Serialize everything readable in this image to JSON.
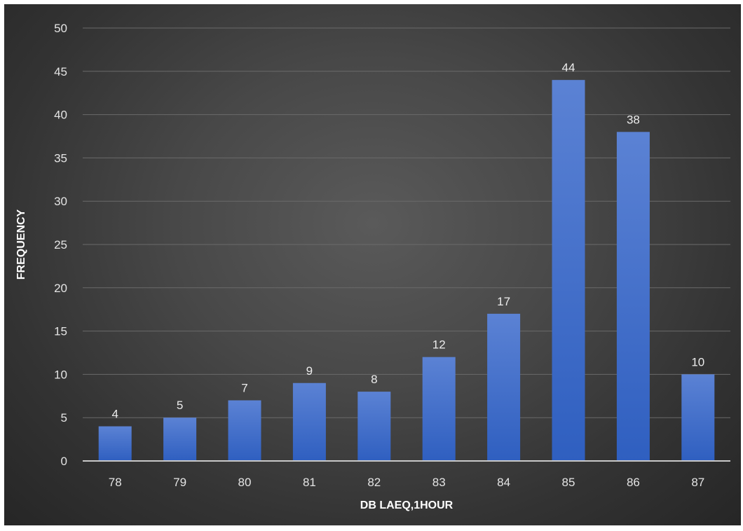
{
  "chart_data": {
    "type": "bar",
    "title": "",
    "xlabel": "DB LAEQ,1HOUR",
    "ylabel": "FREQUENCY",
    "categories": [
      "78",
      "79",
      "80",
      "81",
      "82",
      "83",
      "84",
      "85",
      "86",
      "87"
    ],
    "values": [
      4,
      5,
      7,
      9,
      8,
      12,
      17,
      44,
      38,
      10
    ],
    "ylim": [
      0,
      50
    ],
    "yticks": [
      "0",
      "5",
      "10",
      "15",
      "20",
      "25",
      "30",
      "35",
      "40",
      "45",
      "50"
    ],
    "grid": true,
    "legend": "none",
    "data_labels": [
      "4",
      "5",
      "7",
      "9",
      "8",
      "12",
      "17",
      "44",
      "38",
      "10"
    ],
    "colors": {
      "bar_top": "#5b82d4",
      "bar_bottom": "#2f5fc0",
      "gridline": "#6a6a6a",
      "baseline": "#c8c8c8",
      "text": "#e4e4e4"
    }
  }
}
